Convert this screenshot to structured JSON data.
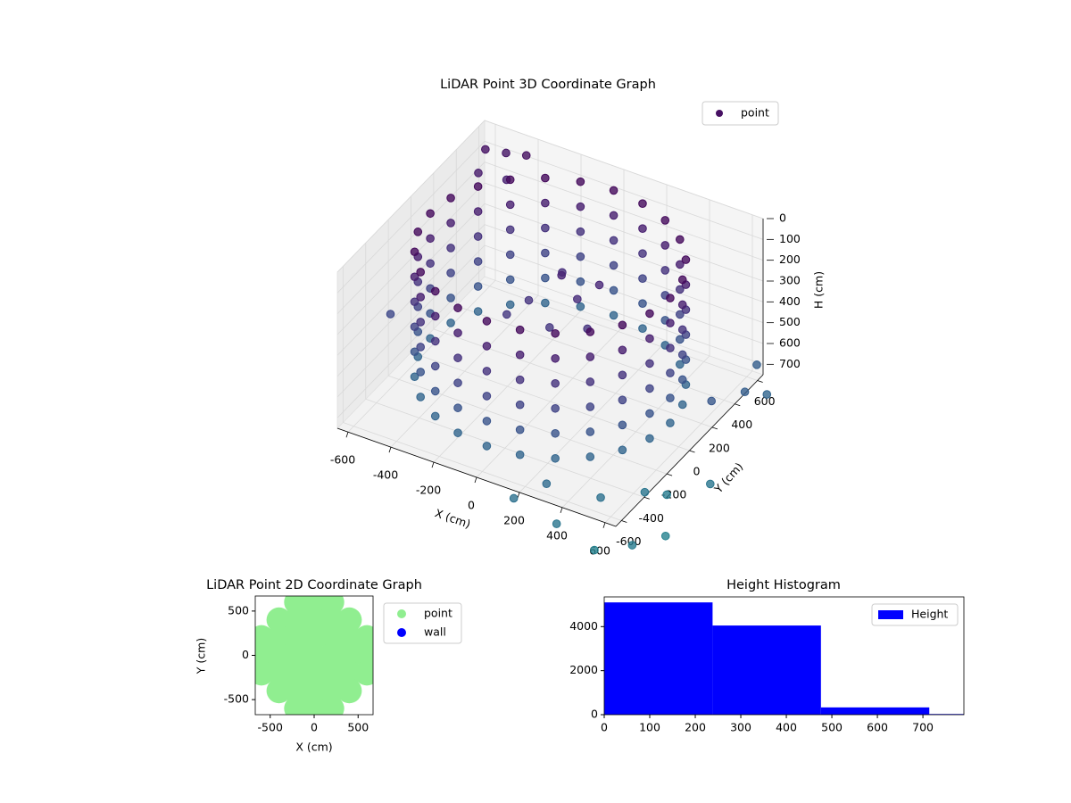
{
  "chart_data": [
    {
      "type": "scatter3d",
      "title": "LiDAR Point 3D Coordinate Graph",
      "xlabel": "X (cm)",
      "ylabel": "Y (cm)",
      "zlabel": "H (cm)",
      "xlim": [
        -650,
        650
      ],
      "ylim": [
        -650,
        650
      ],
      "zlim": [
        0,
        750
      ],
      "z_inverted": true,
      "xticks": [
        -600,
        -400,
        -200,
        0,
        200,
        400,
        600
      ],
      "yticks": [
        -600,
        -400,
        -200,
        0,
        200,
        400,
        600
      ],
      "zticks": [
        0,
        100,
        200,
        300,
        400,
        500,
        600,
        700
      ],
      "grid": true,
      "legend": "upper right",
      "cmap": "viridis",
      "series": [
        {
          "name": "point",
          "color": "#471063",
          "columns": [
            {
              "x": 560,
              "y": 0,
              "z": [
                50,
                170,
                290,
                410,
                530,
                650
              ]
            },
            {
              "x": 541,
              "y": 145,
              "z": [
                50,
                170,
                290,
                410,
                530,
                650
              ]
            },
            {
              "x": 485,
              "y": 280,
              "z": [
                50,
                170,
                290,
                410,
                530,
                650
              ]
            },
            {
              "x": 396,
              "y": 396,
              "z": [
                50,
                170,
                290,
                410,
                530,
                650
              ]
            },
            {
              "x": 280,
              "y": 485,
              "z": [
                50,
                170,
                290,
                410,
                530,
                650
              ]
            },
            {
              "x": 145,
              "y": 541,
              "z": [
                50,
                170,
                290,
                410,
                530,
                650
              ]
            },
            {
              "x": 0,
              "y": 560,
              "z": [
                50,
                170,
                290,
                410,
                530,
                650
              ]
            },
            {
              "x": -145,
              "y": 541,
              "z": [
                50,
                170,
                290,
                410,
                530,
                650
              ]
            },
            {
              "x": -280,
              "y": 485,
              "z": [
                50,
                170,
                290,
                410,
                530,
                650
              ]
            },
            {
              "x": -396,
              "y": 396,
              "z": [
                50,
                170,
                290,
                410,
                530,
                650
              ]
            },
            {
              "x": -485,
              "y": 280,
              "z": [
                50,
                170,
                290,
                410,
                530,
                650
              ]
            },
            {
              "x": -541,
              "y": 145,
              "z": [
                50,
                170,
                290,
                410,
                530,
                650
              ]
            },
            {
              "x": -560,
              "y": 0,
              "z": [
                50,
                170,
                290,
                410,
                530,
                650
              ]
            },
            {
              "x": -541,
              "y": -145,
              "z": [
                50,
                170,
                290,
                410,
                530,
                650
              ]
            },
            {
              "x": -485,
              "y": -280,
              "z": [
                50,
                170,
                290,
                410,
                530,
                650
              ]
            },
            {
              "x": -396,
              "y": -396,
              "z": [
                50,
                170,
                290,
                410,
                530,
                650
              ]
            },
            {
              "x": -280,
              "y": -485,
              "z": [
                50,
                170,
                290,
                410,
                530,
                650
              ]
            },
            {
              "x": -145,
              "y": -541,
              "z": [
                50,
                170,
                290,
                410,
                530,
                650
              ]
            },
            {
              "x": 0,
              "y": -560,
              "z": [
                50,
                170,
                290,
                410,
                530,
                650
              ]
            },
            {
              "x": 145,
              "y": -541,
              "z": [
                50,
                170,
                290,
                410,
                530,
                650
              ]
            },
            {
              "x": 280,
              "y": -485,
              "z": [
                50,
                170,
                290,
                410,
                530,
                650
              ]
            },
            {
              "x": 396,
              "y": -396,
              "z": [
                50,
                170,
                290,
                410,
                530,
                650
              ]
            },
            {
              "x": 485,
              "y": -280,
              "z": [
                50,
                170,
                290,
                410,
                530,
                650
              ]
            },
            {
              "x": 541,
              "y": -145,
              "z": [
                50,
                170,
                290,
                410,
                530,
                650
              ]
            }
          ],
          "points": {
            "x": [
              -620,
              -600,
              -550,
              -500,
              -450,
              -640,
              700,
              750,
              800,
              700,
              300,
              200,
              400,
              500,
              600,
              700,
              650,
              800,
              550,
              750,
              0,
              100,
              -100,
              50,
              150,
              -50,
              200,
              -150
            ],
            "y": [
              600,
              500,
              650,
              560,
              640,
              -200,
              100,
              300,
              400,
              500,
              -600,
              -700,
              -700,
              -500,
              -300,
              -600,
              -200,
              -100,
              -650,
              -400,
              100,
              50,
              0,
              -100,
              150,
              200,
              -50,
              -100
            ],
            "z": [
              100,
              150,
              120,
              180,
              90,
              450,
              550,
              600,
              650,
              600,
              700,
              750,
              800,
              750,
              800,
              850,
              850,
              800,
              900,
              900,
              200,
              250,
              300,
              320,
              220,
              260,
              300,
              330
            ]
          }
        }
      ]
    },
    {
      "type": "scatter",
      "title": "LiDAR Point 2D Coordinate Graph",
      "xlabel": "X (cm)",
      "ylabel": "Y (cm)",
      "xlim": [
        -670,
        670
      ],
      "ylim": [
        -670,
        670
      ],
      "xticks": [
        -500,
        0,
        500
      ],
      "yticks": [
        -500,
        0,
        500
      ],
      "legend": "outside right",
      "series": [
        {
          "name": "point",
          "color": "#90ee90",
          "x": [
            -200,
            0,
            200,
            -400,
            -200,
            0,
            200,
            400,
            -600,
            -400,
            -200,
            0,
            200,
            400,
            600,
            -600,
            -400,
            -200,
            0,
            200,
            400,
            600,
            -600,
            -400,
            -200,
            0,
            200,
            400,
            600,
            -400,
            -200,
            0,
            200,
            400,
            -200,
            0,
            200
          ],
          "y": [
            600,
            600,
            600,
            400,
            400,
            400,
            400,
            400,
            200,
            200,
            200,
            200,
            200,
            200,
            200,
            0,
            0,
            0,
            0,
            0,
            0,
            0,
            -200,
            -200,
            -200,
            -200,
            -200,
            -200,
            -200,
            -400,
            -400,
            -400,
            -400,
            -400,
            -600,
            -600,
            -600
          ]
        },
        {
          "name": "wall",
          "color": "#0000ff",
          "x": [],
          "y": []
        }
      ]
    },
    {
      "type": "histogram",
      "title": "Height Histogram",
      "bins": [
        0,
        238,
        476,
        714,
        952
      ],
      "counts": [
        5100,
        4050,
        330,
        30
      ],
      "color": "#0000ff",
      "name": "Height",
      "xlim": [
        0,
        790
      ],
      "ylim": [
        0,
        5350
      ],
      "xticks": [
        0,
        100,
        200,
        300,
        400,
        500,
        600,
        700
      ],
      "yticks": [
        0,
        2000,
        4000
      ],
      "legend": "upper right"
    }
  ]
}
